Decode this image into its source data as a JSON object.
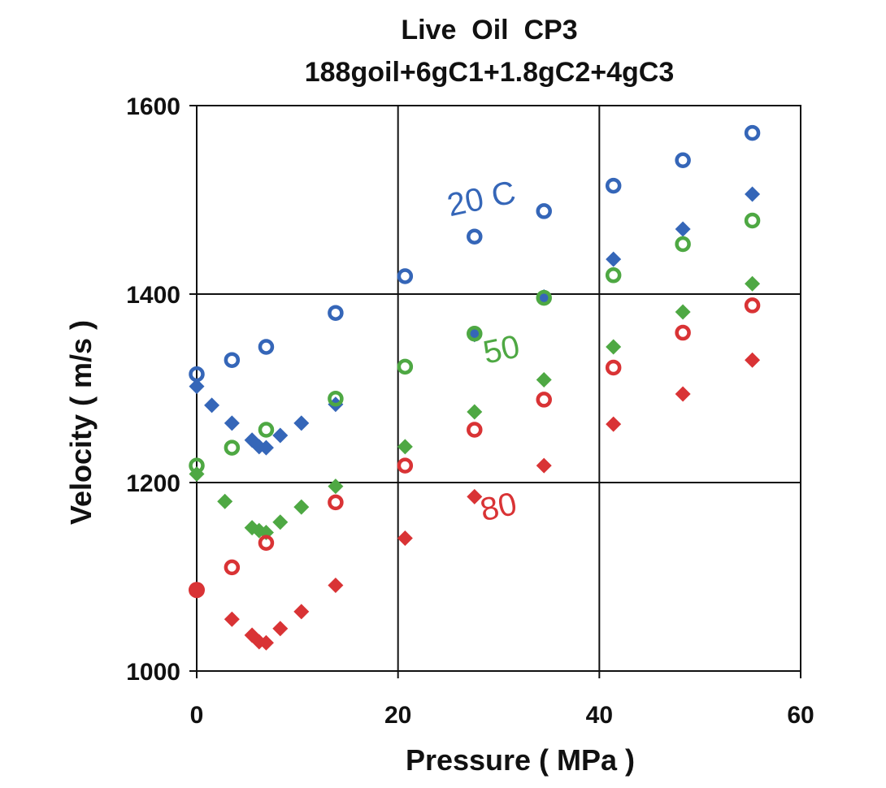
{
  "chart_data": {
    "type": "scatter",
    "title": [
      "Live  Oil  CP3",
      "188goil+6gC1+1.8gC2+4gC3"
    ],
    "xlabel": "Pressure ( MPa )",
    "ylabel": "Velocity ( m/s )",
    "xlim": [
      0,
      60
    ],
    "ylim": [
      1000,
      1600
    ],
    "xticks": [
      0,
      20,
      40,
      60
    ],
    "yticks": [
      1000,
      1200,
      1400,
      1600
    ],
    "grid": true,
    "colors": {
      "blue": "#3566b8",
      "green": "#4ea843",
      "red": "#d93335"
    },
    "annotations": [
      {
        "text": "20 C",
        "color": "#3566b8",
        "x": 28.5,
        "y": 1490,
        "rotate": -12
      },
      {
        "text": "50",
        "color": "#4ea843",
        "x": 30.5,
        "y": 1330,
        "rotate": -12
      },
      {
        "text": "80",
        "color": "#d93335",
        "x": 30.2,
        "y": 1163,
        "rotate": -12
      }
    ],
    "series": [
      {
        "name": "20 C circle",
        "marker": "circle",
        "color": "#3566b8",
        "x": [
          0,
          3.5,
          6.9,
          13.8,
          20.7,
          27.6,
          34.5,
          41.4,
          48.3,
          55.2
        ],
        "y": [
          1315,
          1330,
          1344,
          1380,
          1419,
          1461,
          1488,
          1515,
          1542,
          1571
        ]
      },
      {
        "name": "20 C diamond",
        "marker": "diamond",
        "color": "#3566b8",
        "x": [
          0,
          1.5,
          3.5,
          5.5,
          6.2,
          6.9,
          8.3,
          10.4,
          13.8,
          27.6,
          34.5,
          41.4,
          48.3,
          55.2
        ],
        "y": [
          1302,
          1282,
          1263,
          1245,
          1238,
          1237,
          1250,
          1263,
          1283,
          1357,
          1397,
          1437,
          1469,
          1506
        ]
      },
      {
        "name": "50 circle",
        "marker": "circle",
        "color": "#4ea843",
        "x": [
          0,
          3.5,
          6.9,
          13.8,
          20.7,
          27.6,
          34.5,
          41.4,
          48.3,
          55.2
        ],
        "y": [
          1218,
          1237,
          1256,
          1289,
          1323,
          1358,
          1396,
          1420,
          1453,
          1478
        ]
      },
      {
        "name": "50 diamond",
        "marker": "diamond",
        "color": "#4ea843",
        "x": [
          0,
          2.8,
          5.5,
          6.2,
          6.9,
          8.3,
          10.4,
          13.8,
          20.7,
          27.6,
          34.5,
          41.4,
          48.3,
          55.2
        ],
        "y": [
          1209,
          1180,
          1152,
          1149,
          1147,
          1158,
          1174,
          1196,
          1238,
          1275,
          1309,
          1344,
          1381,
          1411
        ]
      },
      {
        "name": "80 circle",
        "marker": "circle",
        "color": "#d93335",
        "x": [
          3.5,
          6.9,
          13.8,
          20.7,
          27.6,
          34.5,
          41.4,
          48.3,
          55.2
        ],
        "y": [
          1110,
          1136,
          1179,
          1218,
          1256,
          1288,
          1322,
          1359,
          1388
        ]
      },
      {
        "name": "80 filled circle",
        "marker": "filled-circle",
        "color": "#d93335",
        "x": [
          0
        ],
        "y": [
          1086
        ]
      },
      {
        "name": "80 diamond",
        "marker": "diamond",
        "color": "#d93335",
        "x": [
          3.5,
          5.5,
          6.2,
          6.9,
          8.3,
          10.4,
          13.8,
          20.7,
          27.6,
          34.5,
          41.4,
          48.3,
          55.2
        ],
        "y": [
          1055,
          1038,
          1031,
          1030,
          1045,
          1063,
          1091,
          1141,
          1185,
          1218,
          1262,
          1294,
          1330
        ]
      }
    ]
  }
}
